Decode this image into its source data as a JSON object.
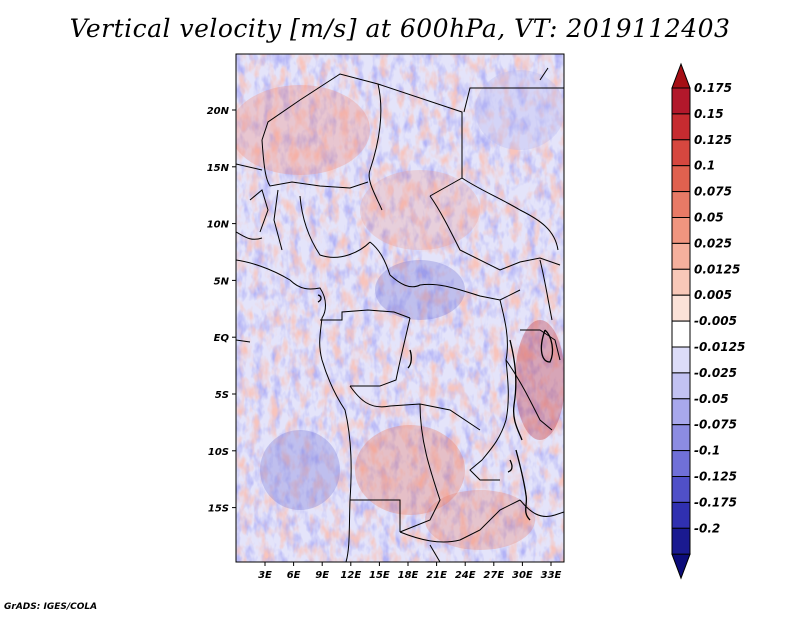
{
  "title": "Vertical velocity [m/s] at 600hPa, VT: 2019112403",
  "credit": "GrADS: IGES/COLA",
  "map": {
    "lon_range": [
      0,
      35
    ],
    "lat_range": [
      -20,
      25
    ],
    "x_ticks": [
      "3E",
      "6E",
      "9E",
      "12E",
      "15E",
      "18E",
      "21E",
      "24E",
      "27E",
      "30E",
      "33E"
    ],
    "y_ticks": [
      "20N",
      "15N",
      "10N",
      "5N",
      "EQ",
      "5S",
      "10S",
      "15S"
    ]
  },
  "colorbar": {
    "labels": [
      "0.175",
      "0.15",
      "0.125",
      "0.1",
      "0.075",
      "0.05",
      "0.025",
      "0.0125",
      "0.005",
      "-0.005",
      "-0.0125",
      "-0.025",
      "-0.05",
      "-0.075",
      "-0.1",
      "-0.125",
      "-0.175",
      "-0.2"
    ],
    "colors": [
      "#b2182b",
      "#c62b30",
      "#d6473f",
      "#e0614f",
      "#e87a66",
      "#f0957f",
      "#f5b09d",
      "#f8c8b8",
      "#fbe2d8",
      "#ffffff",
      "#dcdcf8",
      "#c2c2f2",
      "#a8a8ec",
      "#8c8ce2",
      "#7070d8",
      "#5050c8",
      "#3030b0",
      "#1a1a90"
    ],
    "top_arrow_color": "#a50f15",
    "bottom_arrow_color": "#0c0c7a"
  }
}
